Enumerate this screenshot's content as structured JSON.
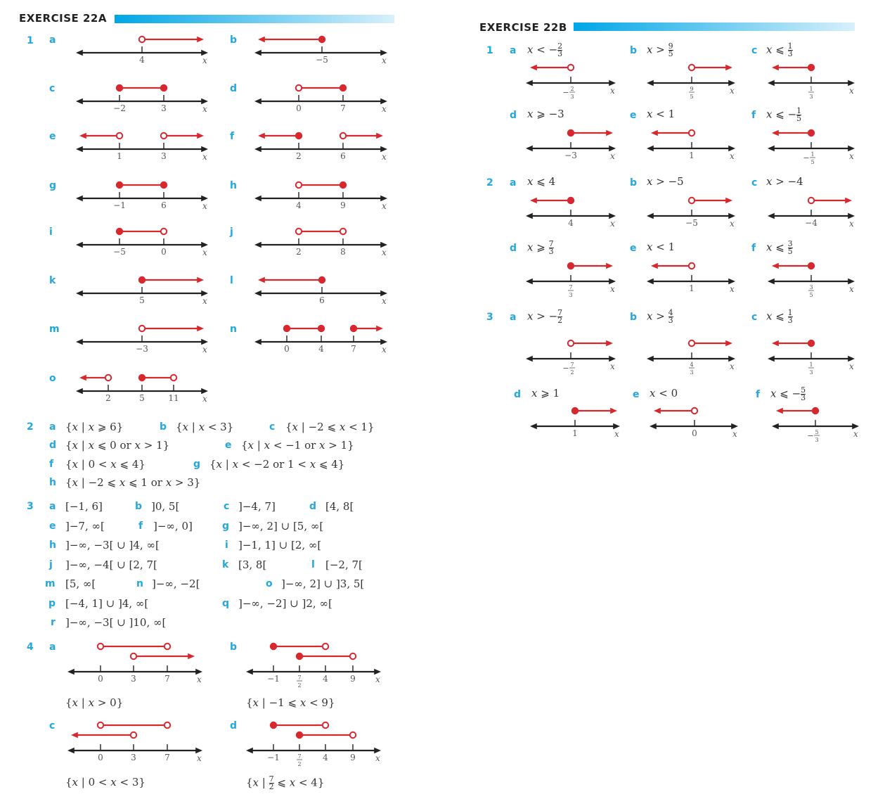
{
  "colors": {
    "accent": "#23a7dc",
    "red": "#d7282f",
    "line": "#222222"
  },
  "ex22a": {
    "title": "EXERCISE 22A",
    "q1": {
      "num": "1",
      "lines": [
        {
          "part": "a",
          "ticks": [
            "4"
          ],
          "segs": [
            [
              "4",
              "o",
              "arrow-right"
            ]
          ]
        },
        {
          "part": "b",
          "ticks": [
            "−5"
          ],
          "segs": [
            [
              "arrow-left",
              "f",
              "−5"
            ]
          ]
        },
        {
          "part": "c",
          "ticks": [
            "−2",
            "3"
          ],
          "segs": [
            [
              "−2",
              "f",
              "f",
              "3"
            ]
          ]
        },
        {
          "part": "d",
          "ticks": [
            "0",
            "7"
          ],
          "segs": [
            [
              "0",
              "o",
              "f",
              "7"
            ]
          ]
        },
        {
          "part": "e",
          "ticks": [
            "1",
            "3"
          ],
          "segs": [
            [
              "arrow-left",
              "o",
              "1"
            ],
            [
              "3",
              "o",
              "arrow-right"
            ]
          ]
        },
        {
          "part": "f",
          "ticks": [
            "2",
            "6"
          ],
          "segs": [
            [
              "arrow-left",
              "f",
              "2"
            ],
            [
              "6",
              "o",
              "arrow-right"
            ]
          ]
        },
        {
          "part": "g",
          "ticks": [
            "−1",
            "6"
          ],
          "segs": [
            [
              "−1",
              "f",
              "f",
              "6"
            ]
          ]
        },
        {
          "part": "h",
          "ticks": [
            "4",
            "9"
          ],
          "segs": [
            [
              "4",
              "o",
              "f",
              "9"
            ]
          ]
        },
        {
          "part": "i",
          "ticks": [
            "−5",
            "0"
          ],
          "segs": [
            [
              "−5",
              "f",
              "o",
              "0"
            ]
          ]
        },
        {
          "part": "j",
          "ticks": [
            "2",
            "8"
          ],
          "segs": [
            [
              "2",
              "o",
              "o",
              "8"
            ]
          ]
        },
        {
          "part": "k",
          "ticks": [
            "5"
          ],
          "segs": [
            [
              "5",
              "f",
              "arrow-right"
            ]
          ]
        },
        {
          "part": "l",
          "ticks": [
            "6"
          ],
          "segs": [
            [
              "arrow-left",
              "f",
              "6"
            ]
          ]
        },
        {
          "part": "m",
          "ticks": [
            "−3"
          ],
          "segs": [
            [
              "−3",
              "o",
              "arrow-right"
            ]
          ]
        },
        {
          "part": "n",
          "ticks": [
            "0",
            "4",
            "7"
          ],
          "segs": [
            [
              "0",
              "f",
              "f",
              "4"
            ],
            [
              "7",
              "f",
              "arrow-right"
            ]
          ]
        },
        {
          "part": "o",
          "ticks": [
            "2",
            "5",
            "11"
          ],
          "segs": [
            [
              "arrow-left",
              "o",
              "2"
            ],
            [
              "5",
              "f",
              "o",
              "11"
            ]
          ]
        }
      ],
      "axis": "x"
    },
    "q2": {
      "num": "2",
      "items": [
        {
          "part": "a",
          "text": "{x | x ⩾ 6}"
        },
        {
          "part": "b",
          "text": "{x | x < 3}"
        },
        {
          "part": "c",
          "text": "{x | −2 ⩽ x < 1}"
        },
        {
          "part": "d",
          "text": "{x | x ⩽ 0  or  x > 1}"
        },
        {
          "part": "e",
          "text": "{x | x < −1  or  x > 1}"
        },
        {
          "part": "f",
          "text": "{x | 0 < x ⩽ 4}"
        },
        {
          "part": "g",
          "text": "{x | x < −2  or  1 < x ⩽ 4}"
        },
        {
          "part": "h",
          "text": "{x | −2 ⩽ x ⩽ 1  or  x > 3}"
        }
      ]
    },
    "q3": {
      "num": "3",
      "items": [
        {
          "part": "a",
          "text": "[−1, 6]"
        },
        {
          "part": "b",
          "text": "]0, 5["
        },
        {
          "part": "c",
          "text": "]−4, 7]"
        },
        {
          "part": "d",
          "text": "[4, 8["
        },
        {
          "part": "e",
          "text": "]−7, ∞["
        },
        {
          "part": "f",
          "text": "]−∞, 0]"
        },
        {
          "part": "g",
          "text": "]−∞, 2] ∪ [5, ∞["
        },
        {
          "part": "h",
          "text": "]−∞, −3[ ∪ ]4, ∞["
        },
        {
          "part": "i",
          "text": "]−1, 1] ∪ [2, ∞["
        },
        {
          "part": "j",
          "text": "]−∞, −4[ ∪ [2, 7["
        },
        {
          "part": "k",
          "text": "[3, 8["
        },
        {
          "part": "l",
          "text": "[−2, 7["
        },
        {
          "part": "m",
          "text": "[5, ∞["
        },
        {
          "part": "n",
          "text": "]−∞, −2["
        },
        {
          "part": "o",
          "text": "]−∞, 2] ∪ ]3, 5["
        },
        {
          "part": "p",
          "text": "[−4, 1] ∪ ]4, ∞["
        },
        {
          "part": "q",
          "text": "]−∞, −2] ∪ ]2, ∞["
        },
        {
          "part": "r",
          "text": "]−∞, −3[ ∪ ]10, ∞["
        }
      ]
    },
    "q4": {
      "num": "4",
      "items": [
        {
          "part": "a",
          "ticks": [
            "0",
            "3",
            "7"
          ],
          "answer": "{x | x > 0}"
        },
        {
          "part": "b",
          "ticks": [
            "−1",
            "7/2",
            "4",
            "9"
          ],
          "answer": "{x | −1 ⩽ x < 9}"
        },
        {
          "part": "c",
          "ticks": [
            "0",
            "3",
            "7"
          ],
          "answer": "{x | 0 < x < 3}"
        },
        {
          "part": "d",
          "ticks": [
            "−1",
            "7/2",
            "4",
            "9"
          ],
          "answer": "{x | 7/2 ⩽ x < 4}"
        }
      ]
    }
  },
  "ex22b": {
    "title": "EXERCISE 22B",
    "items": [
      {
        "q": "1",
        "part": "a",
        "ineq": "x < −2/3",
        "tick": "−2/3"
      },
      {
        "q": "",
        "part": "b",
        "ineq": "x > 9/5",
        "tick": "9/5"
      },
      {
        "q": "",
        "part": "c",
        "ineq": "x ⩽ 1/3",
        "tick": "1/3"
      },
      {
        "q": "",
        "part": "d",
        "ineq": "x ⩾ −3",
        "tick": "−3"
      },
      {
        "q": "",
        "part": "e",
        "ineq": "x < 1",
        "tick": "1"
      },
      {
        "q": "",
        "part": "f",
        "ineq": "x ⩽ −1/5",
        "tick": "−1/5"
      },
      {
        "q": "2",
        "part": "a",
        "ineq": "x ⩽ 4",
        "tick": "4"
      },
      {
        "q": "",
        "part": "b",
        "ineq": "x > −5",
        "tick": "−5"
      },
      {
        "q": "",
        "part": "c",
        "ineq": "x > −4",
        "tick": "−4"
      },
      {
        "q": "",
        "part": "d",
        "ineq": "x ⩾ 7/3",
        "tick": "7/3"
      },
      {
        "q": "",
        "part": "e",
        "ineq": "x < 1",
        "tick": "1"
      },
      {
        "q": "",
        "part": "f",
        "ineq": "x ⩽ 3/5",
        "tick": "3/5"
      },
      {
        "q": "3",
        "part": "a",
        "ineq": "x > −7/2",
        "tick": "−7/2"
      },
      {
        "q": "",
        "part": "b",
        "ineq": "x > 4/3",
        "tick": "4/3"
      },
      {
        "q": "",
        "part": "c",
        "ineq": "x ⩽ 1/3",
        "tick": "1/3"
      },
      {
        "q": "",
        "part": "d",
        "ineq": "x ⩾ 1",
        "tick": "1"
      },
      {
        "q": "",
        "part": "e",
        "ineq": "x < 0",
        "tick": "0"
      },
      {
        "q": "",
        "part": "f",
        "ineq": "x ⩽ −5/3",
        "tick": "−5/3"
      }
    ],
    "axis": "x"
  }
}
